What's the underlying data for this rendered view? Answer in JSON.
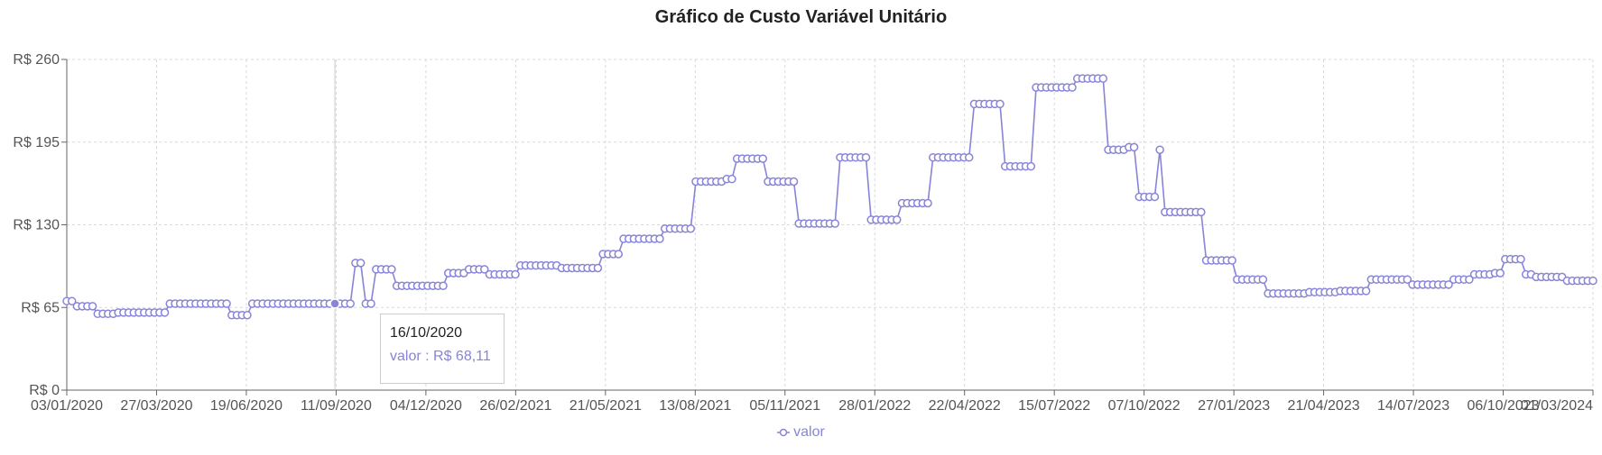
{
  "chart_data": {
    "type": "line",
    "title": "Gráfico de Custo Variável Unitário",
    "xlabel": "",
    "ylabel": "",
    "y_ticks": [
      "R$ 0",
      "R$ 65",
      "R$ 130",
      "R$ 195",
      "R$ 260"
    ],
    "y_tick_values": [
      0,
      65,
      130,
      195,
      260
    ],
    "ylim": [
      0,
      260
    ],
    "x_tick_labels": [
      "03/01/2020",
      "27/03/2020",
      "19/06/2020",
      "11/09/2020",
      "04/12/2020",
      "26/02/2021",
      "21/05/2021",
      "13/08/2021",
      "05/11/2021",
      "28/01/2022",
      "22/04/2022",
      "15/07/2022",
      "07/10/2022",
      "27/01/2023",
      "21/04/2023",
      "14/07/2023",
      "06/10/2023",
      "01/03/2024"
    ],
    "grid": true,
    "legend_position": "bottom",
    "series": [
      {
        "name": "valor",
        "color": "#8884d8",
        "values": [
          70,
          70,
          66,
          66,
          66,
          66,
          60,
          60,
          60,
          60,
          61,
          61,
          61,
          61,
          61,
          61,
          61,
          61,
          61,
          61,
          68,
          68,
          68,
          68,
          68,
          68,
          68,
          68,
          68,
          68,
          68,
          68,
          59,
          59,
          59,
          59,
          68,
          68,
          68,
          68,
          68,
          68,
          68,
          68,
          68,
          68,
          68,
          68,
          68,
          68,
          68,
          68,
          68,
          68,
          68,
          68,
          100,
          100,
          68,
          68,
          95,
          95,
          95,
          95,
          82,
          82,
          82,
          82,
          82,
          82,
          82,
          82,
          82,
          82,
          92,
          92,
          92,
          92,
          95,
          95,
          95,
          95,
          91,
          91,
          91,
          91,
          91,
          91,
          98,
          98,
          98,
          98,
          98,
          98,
          98,
          98,
          96,
          96,
          96,
          96,
          96,
          96,
          96,
          96,
          107,
          107,
          107,
          107,
          119,
          119,
          119,
          119,
          119,
          119,
          119,
          119,
          127,
          127,
          127,
          127,
          127,
          127,
          164,
          164,
          164,
          164,
          164,
          164,
          166,
          166,
          182,
          182,
          182,
          182,
          182,
          182,
          164,
          164,
          164,
          164,
          164,
          164,
          131,
          131,
          131,
          131,
          131,
          131,
          131,
          131,
          183,
          183,
          183,
          183,
          183,
          183,
          134,
          134,
          134,
          134,
          134,
          134,
          147,
          147,
          147,
          147,
          147,
          147,
          183,
          183,
          183,
          183,
          183,
          183,
          183,
          183,
          225,
          225,
          225,
          225,
          225,
          225,
          176,
          176,
          176,
          176,
          176,
          176,
          238,
          238,
          238,
          238,
          238,
          238,
          238,
          238,
          245,
          245,
          245,
          245,
          245,
          245,
          189,
          189,
          189,
          189,
          191,
          191,
          152,
          152,
          152,
          152,
          189,
          140,
          140,
          140,
          140,
          140,
          140,
          140,
          140,
          102,
          102,
          102,
          102,
          102,
          102,
          87,
          87,
          87,
          87,
          87,
          87,
          76,
          76,
          76,
          76,
          76,
          76,
          76,
          76,
          77,
          77,
          77,
          77,
          77,
          77,
          78,
          78,
          78,
          78,
          78,
          78,
          87,
          87,
          87,
          87,
          87,
          87,
          87,
          87,
          83,
          83,
          83,
          83,
          83,
          83,
          83,
          83,
          87,
          87,
          87,
          87,
          91,
          91,
          91,
          91,
          92,
          92,
          103,
          103,
          103,
          103,
          91,
          91,
          89,
          89,
          89,
          89,
          89,
          89,
          86,
          86,
          86,
          86,
          86,
          86
        ]
      }
    ],
    "highlight": {
      "index": 52
    }
  },
  "tooltip": {
    "date": "16/10/2020",
    "name": "valor",
    "separator": " : ",
    "value": "R$ 68,11"
  },
  "legend": {
    "label": "valor"
  }
}
